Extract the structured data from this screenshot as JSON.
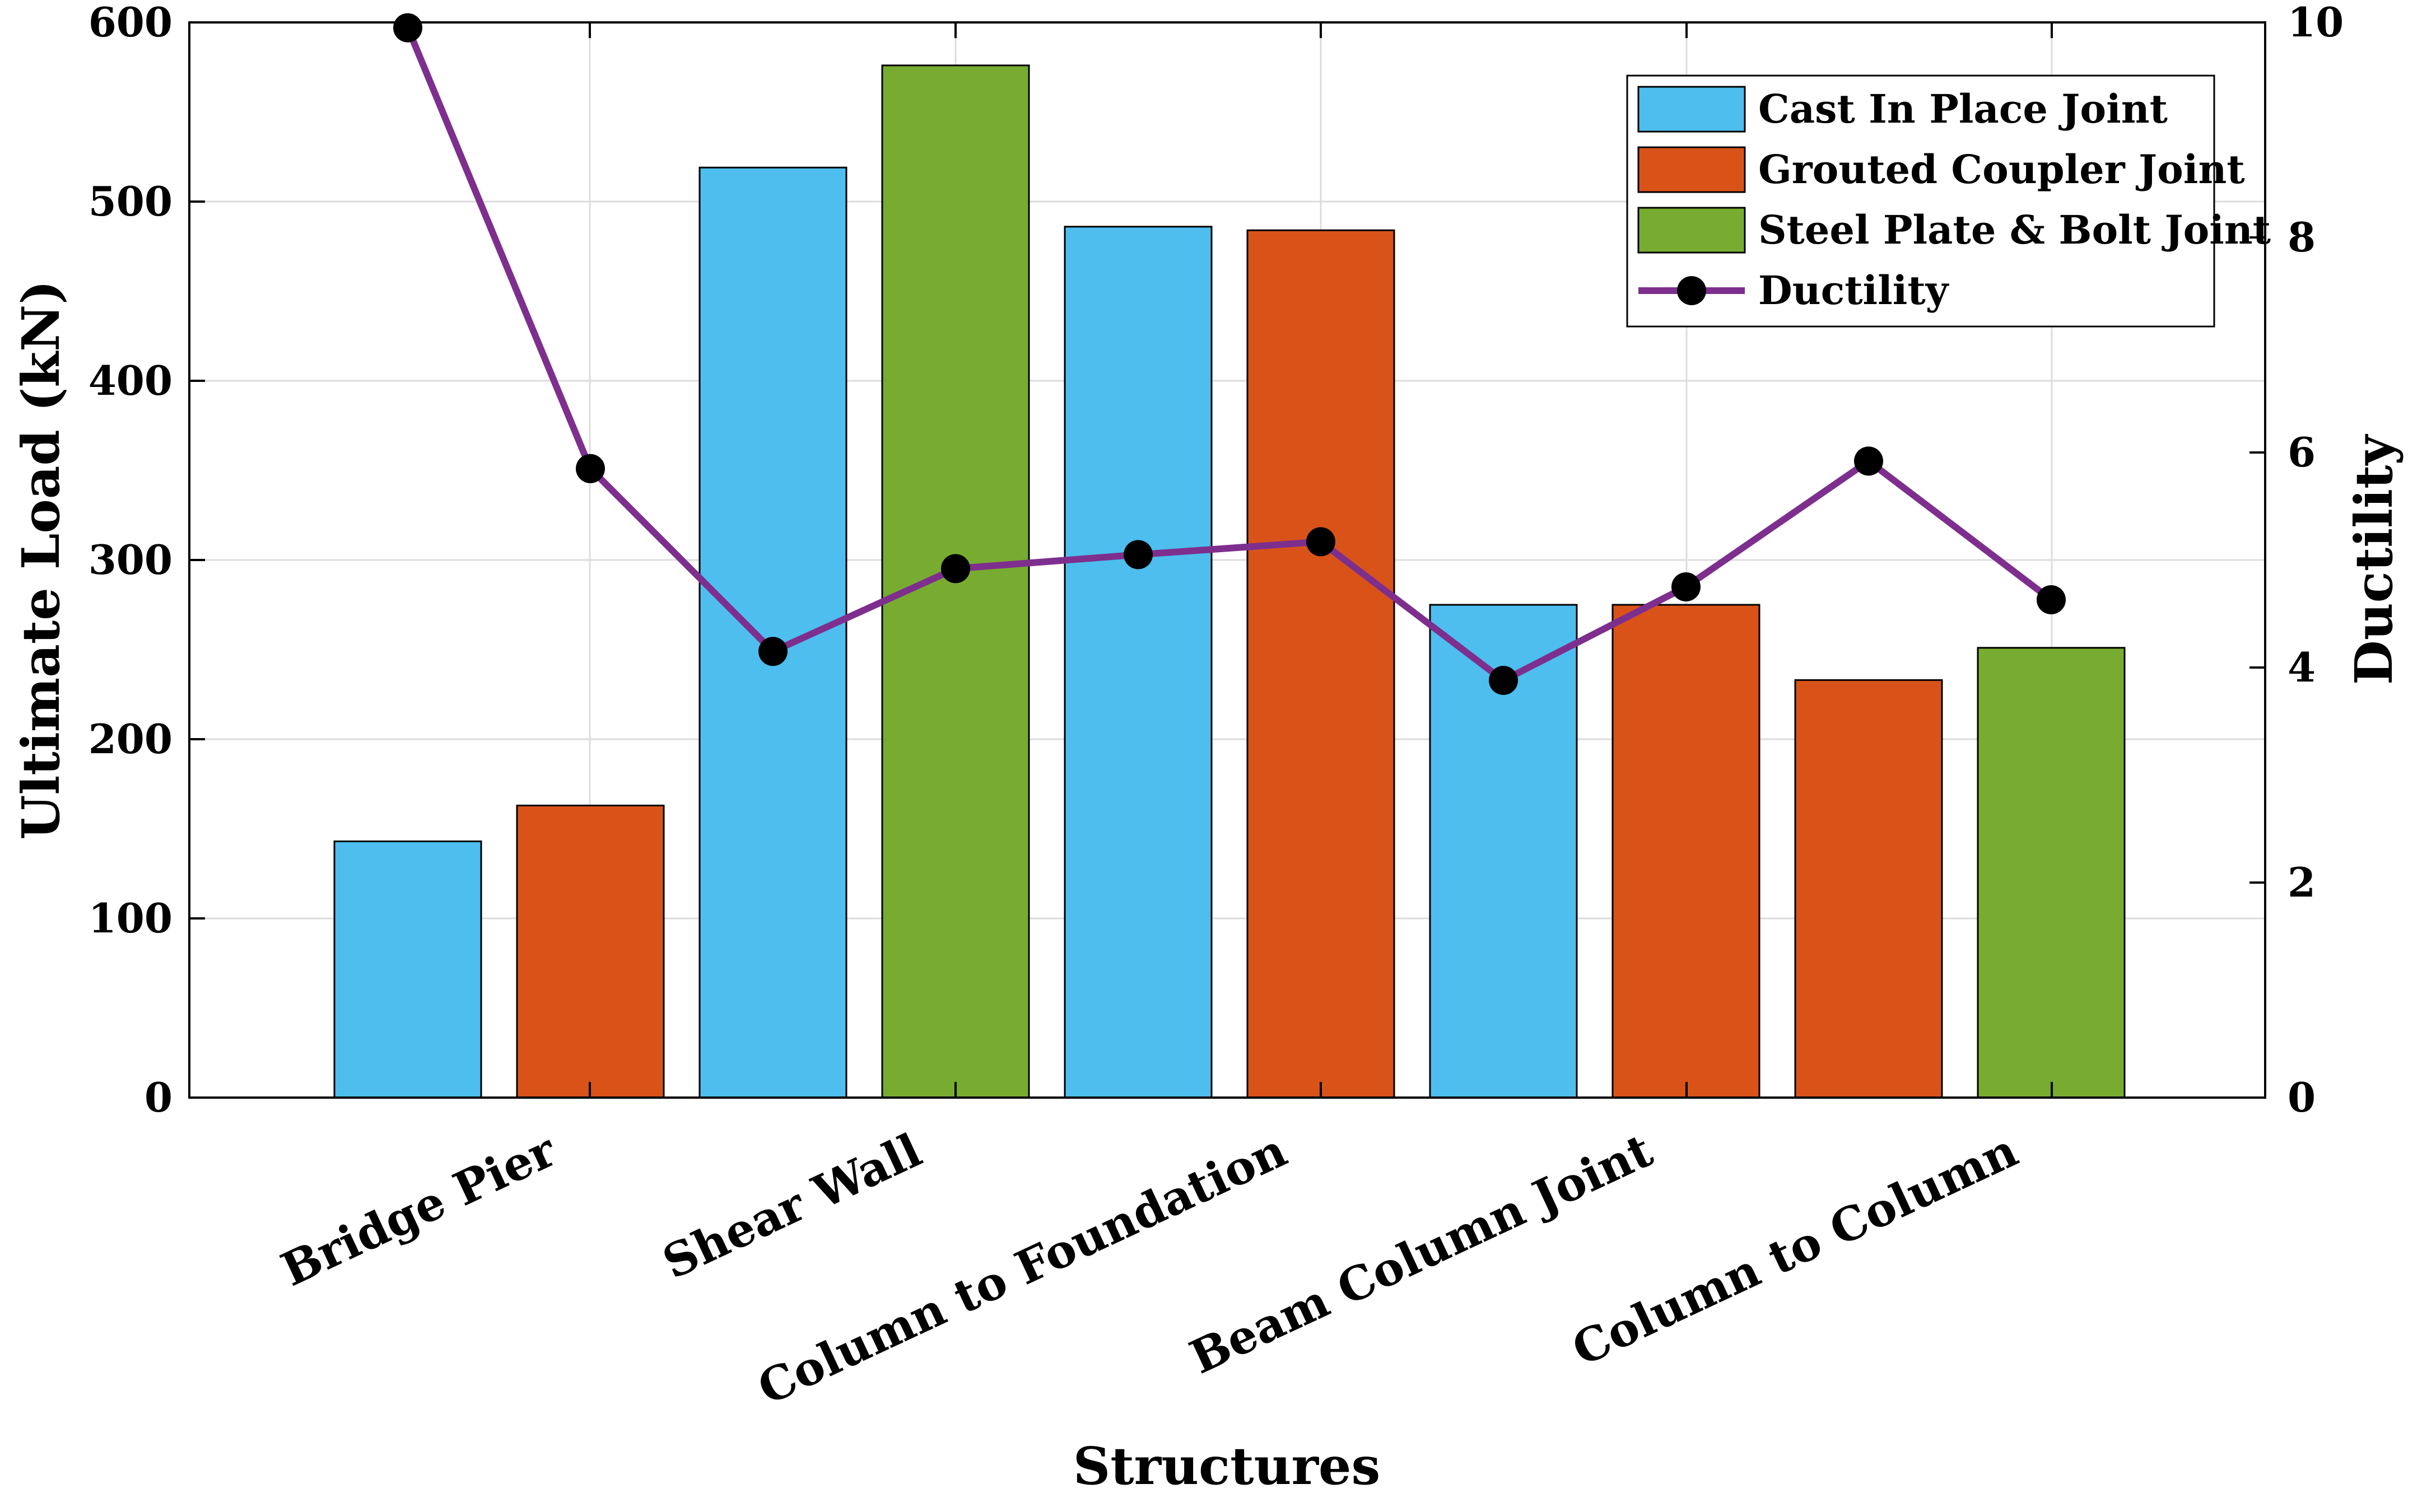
{
  "chart_data": {
    "type": "bar",
    "xlabel": "Structures",
    "ylabel": "Ultimate Load (kN)",
    "y2label": "Ductility",
    "ylim": [
      0,
      600
    ],
    "y2lim": [
      0,
      10
    ],
    "yticks": [
      0,
      100,
      200,
      300,
      400,
      500,
      600
    ],
    "y2ticks": [
      0,
      2,
      4,
      6,
      8,
      10
    ],
    "grid": true,
    "legend_position": "top-right",
    "categories": [
      "Bridge Pier",
      "Shear Wall",
      "Column to Foundation",
      "Beam Column Joint",
      "Column to Column"
    ],
    "joint_types": [
      {
        "name": "Cast In Place Joint",
        "color": "#4DBEEE"
      },
      {
        "name": "Grouted Coupler Joint",
        "color": "#D95319"
      },
      {
        "name": "Steel Plate & Bolt Joint",
        "color": "#77AC30"
      }
    ],
    "bars": [
      {
        "category": "Bridge Pier",
        "joint": "Cast In Place Joint",
        "value": 143,
        "ductility": 9.95
      },
      {
        "category": "Bridge Pier",
        "joint": "Grouted Coupler Joint",
        "value": 163,
        "ductility": 5.85
      },
      {
        "category": "Shear Wall",
        "joint": "Cast In Place Joint",
        "value": 519,
        "ductility": 4.15
      },
      {
        "category": "Shear Wall",
        "joint": "Steel Plate & Bolt Joint",
        "value": 576,
        "ductility": 4.92
      },
      {
        "category": "Column to Foundation",
        "joint": "Cast In Place Joint",
        "value": 486,
        "ductility": 5.05
      },
      {
        "category": "Column to Foundation",
        "joint": "Grouted Coupler Joint",
        "value": 484,
        "ductility": 5.17
      },
      {
        "category": "Beam Column Joint",
        "joint": "Cast In Place Joint",
        "value": 275,
        "ductility": 3.88
      },
      {
        "category": "Beam Column Joint",
        "joint": "Grouted Coupler Joint",
        "value": 275,
        "ductility": 4.75
      },
      {
        "category": "Column to Column",
        "joint": "Grouted Coupler Joint",
        "value": 233,
        "ductility": 5.92
      },
      {
        "category": "Column to Column",
        "joint": "Steel Plate & Bolt Joint",
        "value": 251,
        "ductility": 4.63
      }
    ],
    "line_series": {
      "name": "Ductility",
      "color": "#7E2F8E",
      "marker_color": "#000000"
    }
  }
}
